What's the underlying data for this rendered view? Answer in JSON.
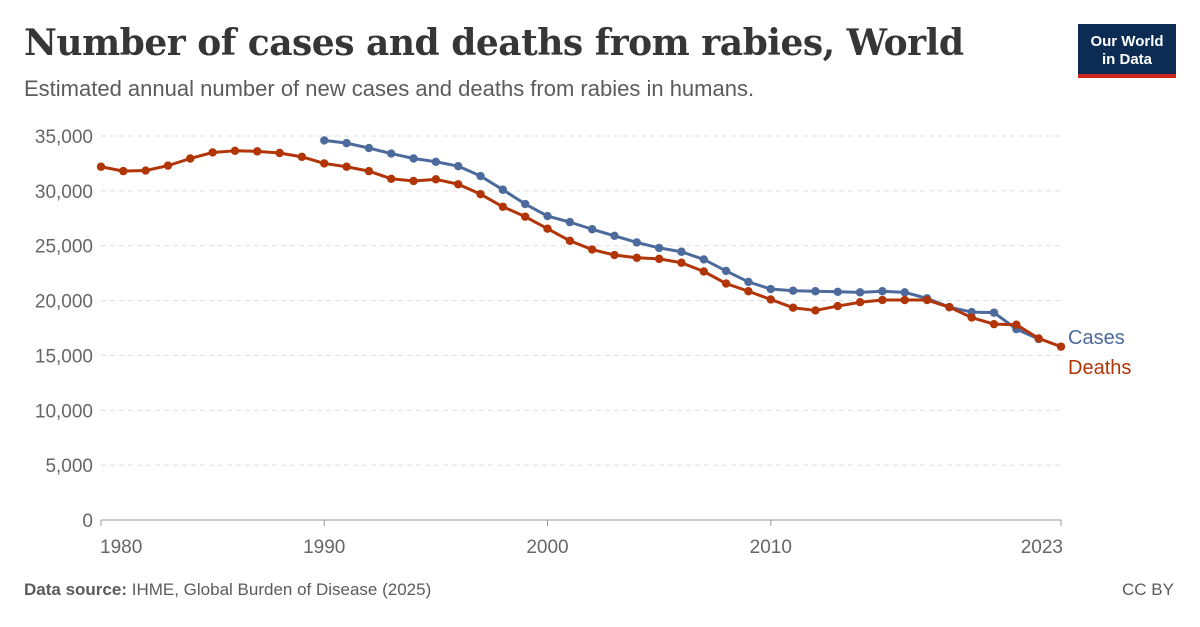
{
  "header": {
    "title": "Number of cases and deaths from rabies, World",
    "subtitle": "Estimated annual number of new cases and deaths from rabies in humans."
  },
  "logo": {
    "line1": "Our World",
    "line2": "in Data"
  },
  "footer": {
    "source_label": "Data source:",
    "source_text": "IHME, Global Burden of Disease (2025)",
    "license": "CC BY"
  },
  "colors": {
    "cases": "#4c6a9c",
    "deaths": "#b13507",
    "grid": "#dddddd",
    "axis_text": "#666666"
  },
  "chart_data": {
    "type": "line",
    "title": "Number of cases and deaths from rabies, World",
    "xlim": [
      1980,
      2023
    ],
    "ylim": [
      0,
      35000
    ],
    "x_ticks": [
      1980,
      1990,
      2000,
      2010,
      2023
    ],
    "x_tick_labels": [
      "1980",
      "1990",
      "2000",
      "2010",
      "2023"
    ],
    "y_ticks": [
      0,
      5000,
      10000,
      15000,
      20000,
      25000,
      30000,
      35000
    ],
    "y_tick_labels": [
      "0",
      "5,000",
      "10,000",
      "15,000",
      "20,000",
      "25,000",
      "30,000",
      "35,000"
    ],
    "grid": true,
    "legend": "end-of-line labels",
    "series": [
      {
        "name": "Cases",
        "color": "#4c6a9c",
        "x": [
          1990,
          1991,
          1992,
          1993,
          1994,
          1995,
          1996,
          1997,
          1998,
          1999,
          2000,
          2001,
          2002,
          2003,
          2004,
          2005,
          2006,
          2007,
          2008,
          2009,
          2010,
          2011,
          2012,
          2013,
          2014,
          2015,
          2016,
          2017,
          2018,
          2019,
          2020,
          2021,
          2022,
          2023
        ],
        "values": [
          34600,
          34350,
          33900,
          33400,
          32950,
          32650,
          32250,
          31350,
          30100,
          28800,
          27700,
          27150,
          26500,
          25900,
          25300,
          24800,
          24450,
          23750,
          22700,
          21700,
          21050,
          20900,
          20850,
          20800,
          20750,
          20850,
          20750,
          20200,
          19400,
          18950,
          18900,
          17400,
          16500,
          null
        ]
      },
      {
        "name": "Deaths",
        "color": "#b13507",
        "x": [
          1980,
          1981,
          1982,
          1983,
          1984,
          1985,
          1986,
          1987,
          1988,
          1989,
          1990,
          1991,
          1992,
          1993,
          1994,
          1995,
          1996,
          1997,
          1998,
          1999,
          2000,
          2001,
          2002,
          2003,
          2004,
          2005,
          2006,
          2007,
          2008,
          2009,
          2010,
          2011,
          2012,
          2013,
          2014,
          2015,
          2016,
          2017,
          2018,
          2019,
          2020,
          2021,
          2022,
          2023
        ],
        "values": [
          32200,
          31800,
          31850,
          32300,
          32950,
          33500,
          33650,
          33600,
          33450,
          33100,
          32500,
          32200,
          31800,
          31100,
          30900,
          31050,
          30600,
          29700,
          28550,
          27650,
          26550,
          25450,
          24650,
          24150,
          23900,
          23800,
          23450,
          22650,
          21550,
          20850,
          20100,
          19350,
          19100,
          19500,
          19850,
          20050,
          20050,
          20050,
          19400,
          18450,
          17850,
          17800,
          16550,
          15800
        ]
      }
    ]
  }
}
